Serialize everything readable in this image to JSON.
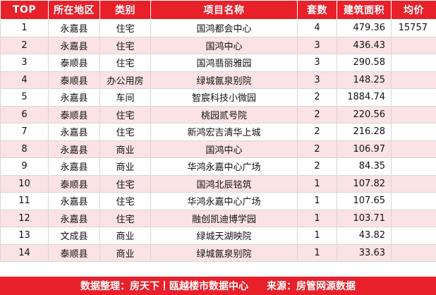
{
  "colors": {
    "header_bg": "#e8202a",
    "alt_row_bg": "#fbe2e4",
    "footer_bg": "#e8202a"
  },
  "table": {
    "headers": [
      "TOP",
      "所在地区",
      "类别",
      "项目名称",
      "套数",
      "建筑面积",
      "均价"
    ],
    "rows": [
      [
        "1",
        "永嘉县",
        "住宅",
        "国鸿都会中心",
        "4",
        "479.36",
        "15757"
      ],
      [
        "2",
        "永嘉县",
        "住宅",
        "国鸿中心",
        "3",
        "436.43",
        ""
      ],
      [
        "3",
        "泰顺县",
        "住宅",
        "国鸿翡丽雅园",
        "3",
        "290.58",
        ""
      ],
      [
        "4",
        "泰顺县",
        "办公用房",
        "绿城氤泉别院",
        "3",
        "148.25",
        ""
      ],
      [
        "5",
        "永嘉县",
        "车间",
        "智宸科技小微园",
        "2",
        "1884.74",
        ""
      ],
      [
        "6",
        "泰顺县",
        "住宅",
        "桃园贰号院",
        "2",
        "220.56",
        ""
      ],
      [
        "7",
        "永嘉县",
        "住宅",
        "新鸿宏吉清华上城",
        "2",
        "216.28",
        ""
      ],
      [
        "8",
        "永嘉县",
        "商业",
        "国鸿中心",
        "2",
        "106.97",
        ""
      ],
      [
        "9",
        "永嘉县",
        "商业",
        "华鸿永嘉中心广场",
        "2",
        "84.35",
        ""
      ],
      [
        "10",
        "泰顺县",
        "住宅",
        "国鸿北辰铭筑",
        "1",
        "107.82",
        ""
      ],
      [
        "11",
        "永嘉县",
        "住宅",
        "华鸿永嘉中心广场",
        "1",
        "107.65",
        ""
      ],
      [
        "12",
        "永嘉县",
        "住宅",
        "融创凯迪博学园",
        "1",
        "103.71",
        ""
      ],
      [
        "13",
        "文成县",
        "商业",
        "绿城天湖映院",
        "1",
        "43.82",
        ""
      ],
      [
        "14",
        "泰顺县",
        "商业",
        "绿城氤泉别院",
        "1",
        "33.63",
        ""
      ]
    ]
  },
  "footer": {
    "data_label": "数据整理：",
    "data_source": "房天下丨瓯越楼市数据中心",
    "origin_label": "来源：",
    "origin": "房管网源数据"
  }
}
